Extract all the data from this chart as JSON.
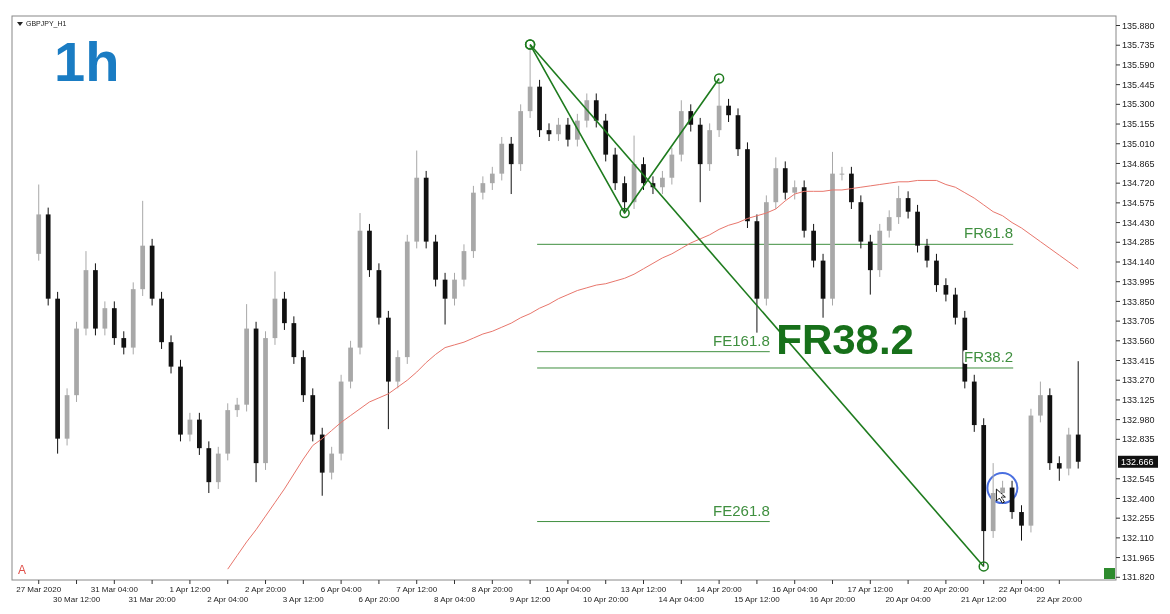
{
  "chart_data": {
    "type": "candlestick",
    "title": "1h",
    "subtitle": "GBPJPY_H1",
    "categories": [
      "27 Mar 2020",
      null,
      null,
      null,
      "30 Mar 12:00",
      null,
      null,
      null,
      "31 Mar 04:00",
      null,
      null,
      null,
      "31 Mar 20:00",
      null,
      null,
      null,
      "1 Apr 12:00",
      null,
      null,
      null,
      "2 Apr 04:00",
      null,
      null,
      null,
      "2 Apr 20:00",
      null,
      null,
      null,
      "3 Apr 12:00",
      null,
      null,
      null,
      "6 Apr 04:00",
      null,
      null,
      null,
      "6 Apr 20:00",
      null,
      null,
      null,
      "7 Apr 12:00",
      null,
      null,
      null,
      "8 Apr 04:00",
      null,
      null,
      null,
      "8 Apr 20:00",
      null,
      null,
      null,
      "9 Apr 12:00",
      null,
      null,
      null,
      "10 Apr 04:00",
      null,
      null,
      null,
      "10 Apr 20:00",
      null,
      null,
      null,
      "13 Apr 12:00",
      null,
      null,
      null,
      "14 Apr 04:00",
      null,
      null,
      null,
      "14 Apr 20:00",
      null,
      null,
      null,
      "15 Apr 12:00",
      null,
      null,
      null,
      "16 Apr 04:00",
      null,
      null,
      null,
      "16 Apr 20:00",
      null,
      null,
      null,
      "17 Apr 12:00",
      null,
      null,
      null,
      "20 Apr 04:00",
      null,
      null,
      null,
      "20 Apr 20:00",
      null,
      null,
      null,
      "21 Apr 12:00",
      null,
      null,
      null,
      "22 Apr 04:00",
      null,
      null,
      null,
      "22 Apr 20:00",
      null,
      null
    ],
    "ohlc": [
      [
        134.2,
        134.71,
        134.15,
        134.49
      ],
      [
        134.49,
        134.54,
        133.82,
        133.87
      ],
      [
        133.87,
        133.92,
        132.73,
        132.84
      ],
      [
        132.84,
        133.21,
        132.79,
        133.16
      ],
      [
        133.16,
        133.7,
        133.11,
        133.65
      ],
      [
        133.65,
        134.22,
        133.6,
        134.08
      ],
      [
        134.08,
        134.13,
        133.6,
        133.65
      ],
      [
        133.65,
        133.85,
        133.6,
        133.8
      ],
      [
        133.8,
        133.85,
        133.53,
        133.58
      ],
      [
        133.58,
        133.63,
        133.46,
        133.51
      ],
      [
        133.51,
        133.99,
        133.46,
        133.94
      ],
      [
        133.94,
        134.59,
        133.89,
        134.26
      ],
      [
        134.26,
        134.31,
        133.82,
        133.87
      ],
      [
        133.87,
        133.92,
        133.5,
        133.55
      ],
      [
        133.55,
        133.6,
        133.32,
        133.37
      ],
      [
        133.37,
        133.42,
        132.82,
        132.87
      ],
      [
        132.87,
        133.03,
        132.82,
        132.98
      ],
      [
        132.98,
        133.03,
        132.72,
        132.77
      ],
      [
        132.77,
        132.82,
        132.44,
        132.52
      ],
      [
        132.52,
        132.78,
        132.47,
        132.73
      ],
      [
        132.73,
        133.1,
        132.68,
        133.05
      ],
      [
        133.05,
        133.14,
        133.0,
        133.09
      ],
      [
        133.09,
        133.83,
        133.04,
        133.65
      ],
      [
        133.65,
        133.7,
        132.52,
        132.66
      ],
      [
        132.66,
        133.63,
        132.61,
        133.58
      ],
      [
        133.58,
        134.07,
        133.53,
        133.87
      ],
      [
        133.87,
        133.92,
        133.64,
        133.69
      ],
      [
        133.69,
        133.74,
        133.39,
        133.44
      ],
      [
        133.44,
        133.49,
        133.11,
        133.16
      ],
      [
        133.16,
        133.21,
        132.82,
        132.87
      ],
      [
        132.87,
        132.92,
        132.42,
        132.59
      ],
      [
        132.59,
        132.78,
        132.54,
        132.73
      ],
      [
        132.73,
        133.31,
        132.68,
        133.26
      ],
      [
        133.26,
        133.56,
        133.21,
        133.51
      ],
      [
        133.51,
        134.5,
        133.46,
        134.37
      ],
      [
        134.37,
        134.42,
        134.03,
        134.08
      ],
      [
        134.08,
        134.13,
        133.68,
        133.73
      ],
      [
        133.73,
        133.78,
        132.91,
        133.26
      ],
      [
        133.26,
        133.49,
        133.21,
        133.44
      ],
      [
        133.44,
        134.34,
        133.39,
        134.29
      ],
      [
        134.29,
        134.96,
        134.24,
        134.76
      ],
      [
        134.76,
        134.81,
        134.24,
        134.29
      ],
      [
        134.29,
        134.34,
        133.96,
        134.01
      ],
      [
        134.01,
        134.06,
        133.68,
        133.87
      ],
      [
        133.87,
        134.06,
        133.82,
        134.01
      ],
      [
        134.01,
        134.27,
        133.96,
        134.22
      ],
      [
        134.22,
        134.7,
        134.17,
        134.65
      ],
      [
        134.65,
        134.77,
        134.6,
        134.72
      ],
      [
        134.72,
        134.84,
        134.67,
        134.79
      ],
      [
        134.79,
        135.06,
        134.74,
        135.01
      ],
      [
        135.01,
        135.06,
        134.64,
        134.86
      ],
      [
        134.86,
        135.3,
        134.81,
        135.25
      ],
      [
        135.25,
        135.73,
        135.2,
        135.43
      ],
      [
        135.43,
        135.48,
        135.06,
        135.11
      ],
      [
        135.11,
        135.16,
        135.03,
        135.08
      ],
      [
        135.08,
        135.2,
        135.03,
        135.15
      ],
      [
        135.15,
        135.2,
        134.99,
        135.04
      ],
      [
        135.04,
        135.23,
        134.99,
        135.18
      ],
      [
        135.18,
        135.38,
        135.13,
        135.33
      ],
      [
        135.33,
        135.38,
        135.13,
        135.18
      ],
      [
        135.18,
        135.23,
        134.88,
        134.93
      ],
      [
        134.93,
        134.98,
        134.67,
        134.72
      ],
      [
        134.72,
        134.77,
        134.51,
        134.58
      ],
      [
        134.58,
        135.07,
        134.53,
        134.86
      ],
      [
        134.86,
        134.91,
        134.67,
        134.72
      ],
      [
        134.72,
        134.77,
        134.64,
        134.69
      ],
      [
        134.69,
        134.81,
        134.64,
        134.76
      ],
      [
        134.76,
        134.98,
        134.71,
        134.93
      ],
      [
        134.93,
        135.33,
        134.88,
        135.25
      ],
      [
        135.25,
        135.3,
        135.1,
        135.15
      ],
      [
        135.15,
        135.2,
        134.58,
        134.86
      ],
      [
        134.86,
        135.16,
        134.81,
        135.11
      ],
      [
        135.11,
        135.48,
        135.06,
        135.29
      ],
      [
        135.29,
        135.34,
        135.17,
        135.22
      ],
      [
        135.22,
        135.27,
        134.92,
        134.97
      ],
      [
        134.97,
        135.02,
        134.39,
        134.44
      ],
      [
        134.44,
        134.49,
        133.62,
        133.87
      ],
      [
        133.87,
        134.63,
        133.82,
        134.58
      ],
      [
        134.58,
        134.91,
        134.53,
        134.83
      ],
      [
        134.83,
        134.88,
        134.6,
        134.65
      ],
      [
        134.65,
        134.74,
        134.6,
        134.69
      ],
      [
        134.69,
        134.74,
        134.32,
        134.37
      ],
      [
        134.37,
        134.42,
        134.1,
        134.15
      ],
      [
        134.15,
        134.2,
        133.73,
        133.87
      ],
      [
        133.87,
        134.95,
        133.82,
        134.79
      ],
      [
        134.79,
        134.84,
        134.74,
        134.79
      ],
      [
        134.79,
        134.84,
        134.53,
        134.58
      ],
      [
        134.58,
        134.63,
        134.24,
        134.29
      ],
      [
        134.29,
        134.34,
        133.9,
        134.08
      ],
      [
        134.08,
        134.42,
        134.03,
        134.37
      ],
      [
        134.37,
        134.52,
        134.32,
        134.47
      ],
      [
        134.47,
        134.7,
        134.42,
        134.61
      ],
      [
        134.61,
        134.66,
        134.46,
        134.51
      ],
      [
        134.51,
        134.56,
        134.21,
        134.26
      ],
      [
        134.26,
        134.31,
        134.1,
        134.15
      ],
      [
        134.15,
        134.2,
        133.92,
        133.97
      ],
      [
        133.97,
        134.02,
        133.85,
        133.9
      ],
      [
        133.9,
        133.95,
        133.68,
        133.73
      ],
      [
        133.73,
        133.78,
        133.21,
        133.26
      ],
      [
        133.26,
        133.31,
        132.89,
        132.94
      ],
      [
        132.94,
        132.99,
        131.9,
        132.16
      ],
      [
        132.16,
        132.66,
        132.11,
        132.44
      ],
      [
        132.44,
        132.53,
        132.39,
        132.48
      ],
      [
        132.48,
        132.53,
        132.25,
        132.3
      ],
      [
        132.3,
        132.35,
        132.09,
        132.2
      ],
      [
        132.2,
        133.06,
        132.15,
        133.01
      ],
      [
        133.01,
        133.26,
        132.96,
        133.16
      ],
      [
        133.16,
        133.21,
        132.61,
        132.66
      ],
      [
        132.66,
        132.71,
        132.53,
        132.62
      ],
      [
        132.62,
        132.92,
        132.57,
        132.87
      ],
      [
        132.87,
        133.41,
        132.62,
        132.67
      ]
    ],
    "series": [
      {
        "type": "line",
        "color": "#e8766c",
        "marker": "none",
        "values": [
          null,
          null,
          null,
          null,
          null,
          null,
          null,
          null,
          null,
          null,
          null,
          null,
          null,
          null,
          null,
          null,
          null,
          null,
          null,
          null,
          131.88,
          131.98,
          132.08,
          132.17,
          132.27,
          132.37,
          132.47,
          132.58,
          132.69,
          132.79,
          132.84,
          132.9,
          132.96,
          133.01,
          133.06,
          133.11,
          133.14,
          133.17,
          133.22,
          133.27,
          133.33,
          133.4,
          133.46,
          133.51,
          133.53,
          133.55,
          133.58,
          133.61,
          133.63,
          133.66,
          133.69,
          133.73,
          133.76,
          133.8,
          133.83,
          133.87,
          133.9,
          133.93,
          133.95,
          133.97,
          133.98,
          134.0,
          134.02,
          134.05,
          134.09,
          134.13,
          134.17,
          134.2,
          134.24,
          134.28,
          134.31,
          134.34,
          134.38,
          134.41,
          134.43,
          134.46,
          134.48,
          134.5,
          134.53,
          134.59,
          134.64,
          134.66,
          134.66,
          134.66,
          134.67,
          134.67,
          134.68,
          134.69,
          134.7,
          134.71,
          134.72,
          134.73,
          134.73,
          134.74,
          134.74,
          134.74,
          134.71,
          134.69,
          134.65,
          134.61,
          134.56,
          134.51,
          134.48,
          134.43,
          134.39,
          134.34,
          134.29,
          134.24,
          134.19,
          134.14,
          134.09
        ]
      },
      {
        "type": "line",
        "color": "#1e7b1e",
        "marker": "circle",
        "values": [
          null,
          null,
          null,
          null,
          null,
          null,
          null,
          null,
          null,
          null,
          null,
          null,
          null,
          null,
          null,
          null,
          null,
          null,
          null,
          null,
          null,
          null,
          null,
          null,
          null,
          null,
          null,
          null,
          null,
          null,
          null,
          null,
          null,
          null,
          null,
          null,
          null,
          null,
          null,
          null,
          null,
          null,
          null,
          null,
          null,
          null,
          null,
          null,
          null,
          null,
          null,
          null,
          135.74,
          null,
          null,
          null,
          null,
          null,
          null,
          null,
          null,
          null,
          134.5,
          null,
          null,
          null,
          null,
          null,
          null,
          null,
          null,
          null,
          135.49,
          null,
          null,
          null,
          null,
          null,
          null,
          null,
          null,
          null,
          null,
          null,
          null,
          null,
          null,
          null,
          null,
          null,
          null,
          null,
          null,
          null,
          null,
          null,
          null,
          null,
          null,
          null,
          null,
          null,
          null,
          null,
          null,
          null,
          null,
          null,
          null,
          null,
          null
        ]
      },
      {
        "type": "line",
        "color": "#1e7b1e",
        "marker": "circle",
        "values": [
          null,
          null,
          null,
          null,
          null,
          null,
          null,
          null,
          null,
          null,
          null,
          null,
          null,
          null,
          null,
          null,
          null,
          null,
          null,
          null,
          null,
          null,
          null,
          null,
          null,
          null,
          null,
          null,
          null,
          null,
          null,
          null,
          null,
          null,
          null,
          null,
          null,
          null,
          null,
          null,
          null,
          null,
          null,
          null,
          null,
          null,
          null,
          null,
          null,
          null,
          null,
          null,
          135.74,
          null,
          null,
          null,
          null,
          null,
          null,
          null,
          null,
          null,
          null,
          null,
          null,
          null,
          null,
          null,
          null,
          null,
          null,
          null,
          null,
          null,
          null,
          null,
          null,
          null,
          null,
          null,
          null,
          null,
          null,
          null,
          null,
          null,
          null,
          null,
          null,
          null,
          null,
          null,
          null,
          null,
          null,
          null,
          null,
          null,
          null,
          null,
          131.9,
          null,
          null,
          null,
          null,
          null,
          null,
          null,
          null,
          null,
          null
        ]
      }
    ],
    "ref_lines": [
      {
        "axis": "y",
        "value": 134.27,
        "label": "FR61.8",
        "color": "#3f8f3f"
      },
      {
        "axis": "y",
        "value": 133.36,
        "label": "FR38.2",
        "color": "#3f8f3f"
      },
      {
        "axis": "y",
        "value": 133.48,
        "label": "FE161.8",
        "color": "#3f8f3f"
      },
      {
        "axis": "y",
        "value": 132.23,
        "label": "FE261.8",
        "color": "#3f8f3f"
      }
    ],
    "annotations": [
      "FR38.2",
      "A",
      "132.666"
    ],
    "ylim": [
      131.8,
      135.95
    ],
    "yticks": [
      {
        "value": 131.82,
        "label": "131.820"
      },
      {
        "value": 131.965,
        "label": "131.965"
      },
      {
        "value": 132.11,
        "label": "132.110"
      },
      {
        "value": 132.255,
        "label": "132.255"
      },
      {
        "value": 132.4,
        "label": "132.400"
      },
      {
        "value": 132.545,
        "label": "132.545"
      },
      {
        "value": 132.835,
        "label": "132.835"
      },
      {
        "value": 132.98,
        "label": "132.980"
      },
      {
        "value": 133.125,
        "label": "133.125"
      },
      {
        "value": 133.27,
        "label": "133.270"
      },
      {
        "value": 133.415,
        "label": "133.415"
      },
      {
        "value": 133.56,
        "label": "133.560"
      },
      {
        "value": 133.705,
        "label": "133.705"
      },
      {
        "value": 133.85,
        "label": "133.850"
      },
      {
        "value": 133.995,
        "label": "133.995"
      },
      {
        "value": 134.14,
        "label": "134.140"
      },
      {
        "value": 134.285,
        "label": "134.285"
      },
      {
        "value": 134.43,
        "label": "134.430"
      },
      {
        "value": 134.575,
        "label": "134.575"
      },
      {
        "value": 134.72,
        "label": "134.720"
      },
      {
        "value": 134.865,
        "label": "134.865"
      },
      {
        "value": 135.01,
        "label": "135.010"
      },
      {
        "value": 135.155,
        "label": "135.155"
      },
      {
        "value": 135.3,
        "label": "135.300"
      },
      {
        "value": 135.445,
        "label": "135.445"
      },
      {
        "value": 135.59,
        "label": "135.590"
      },
      {
        "value": 135.735,
        "label": "135.735"
      },
      {
        "value": 135.88,
        "label": "135.880"
      }
    ]
  }
}
